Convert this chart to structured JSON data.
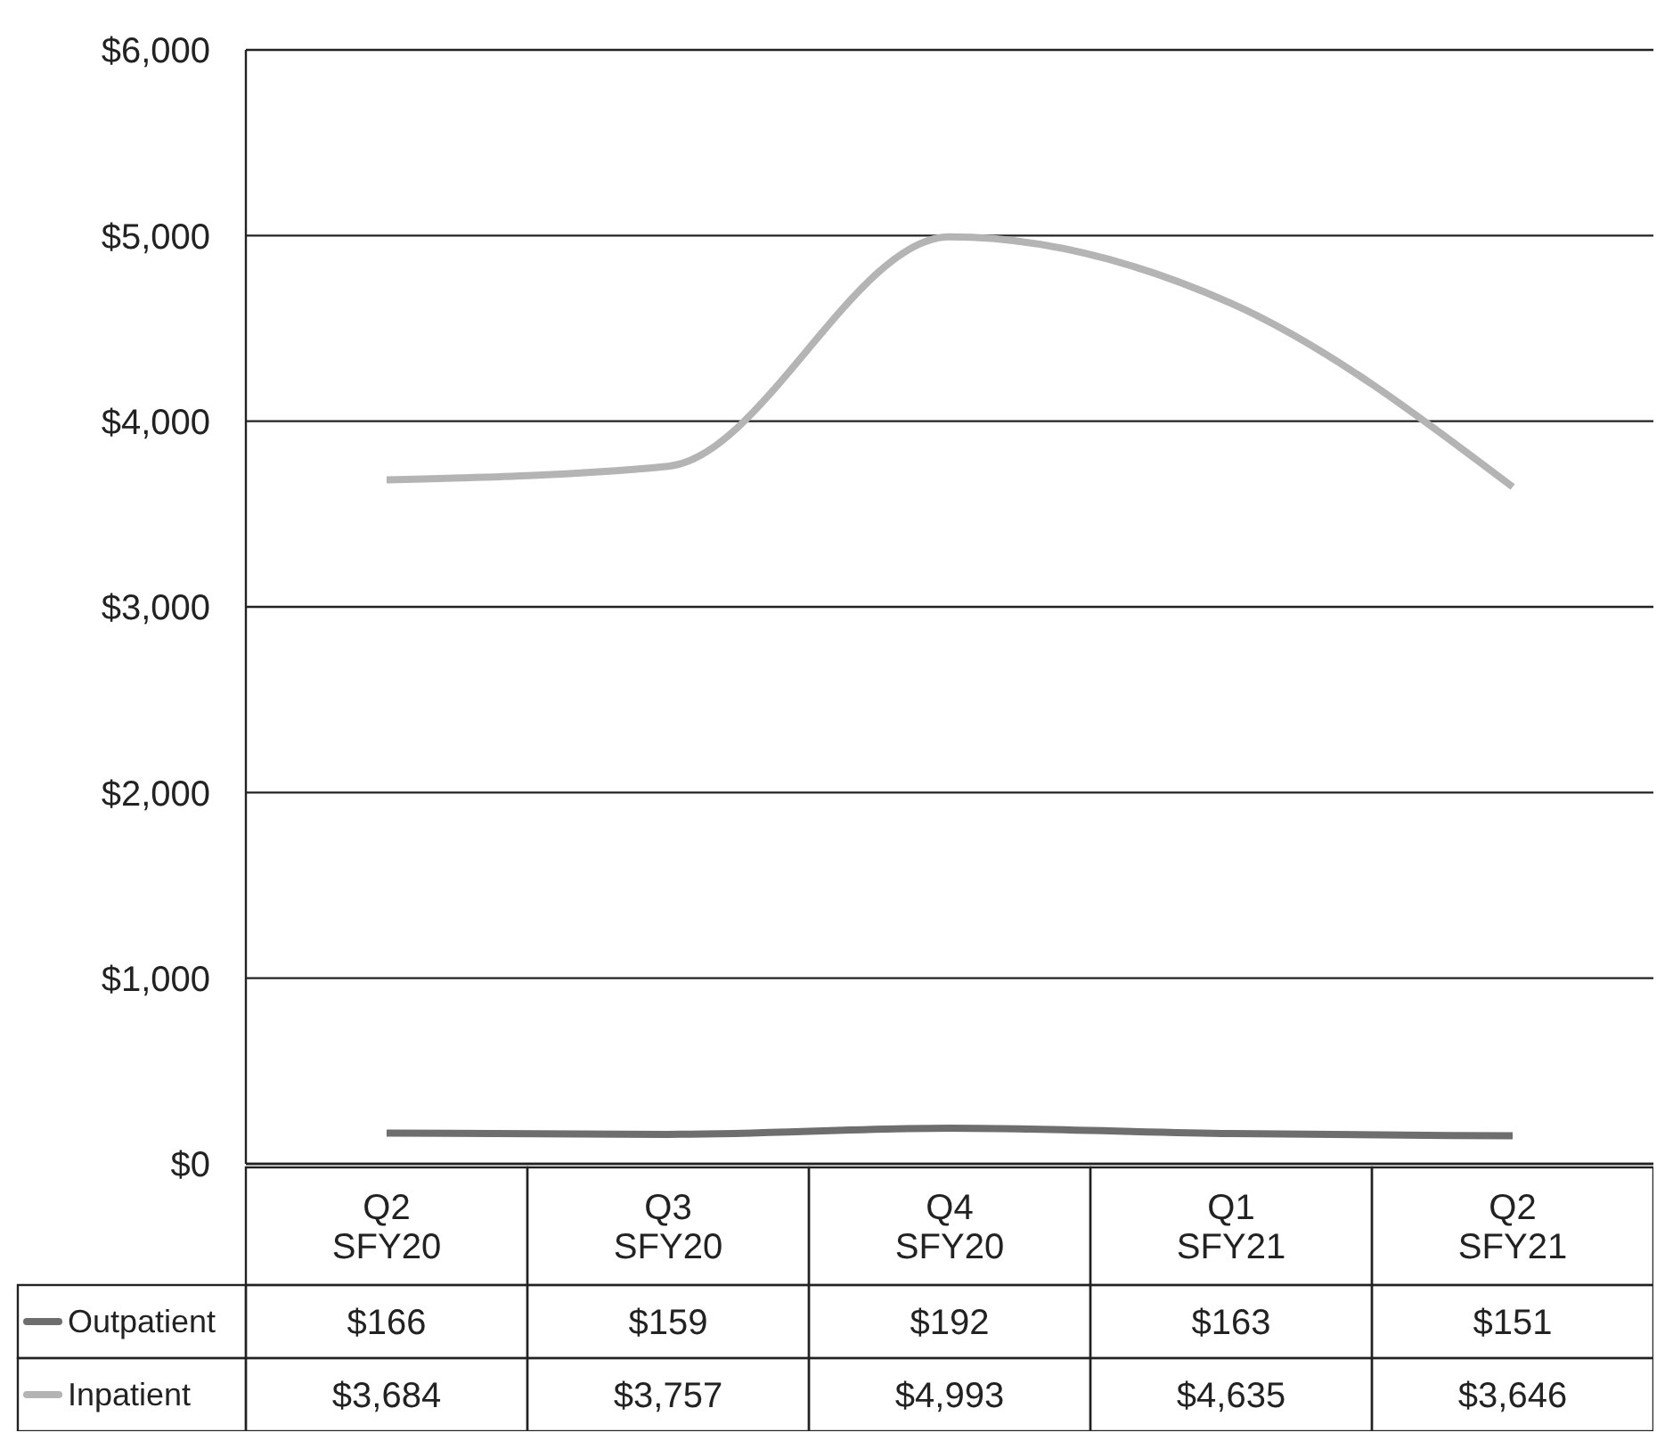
{
  "chart_data": {
    "type": "line",
    "categories": [
      "Q2 SFY20",
      "Q3 SFY20",
      "Q4 SFY20",
      "Q1 SFY21",
      "Q2 SFY21"
    ],
    "series": [
      {
        "name": "Outpatient",
        "color": "#6e6e6e",
        "values": [
          166,
          159,
          192,
          163,
          151
        ],
        "value_labels": [
          "$166",
          "$159",
          "$192",
          "$163",
          "$151"
        ]
      },
      {
        "name": "Inpatient",
        "color": "#b4b4b4",
        "values": [
          3684,
          3757,
          4993,
          4635,
          3646
        ],
        "value_labels": [
          "$3,684",
          "$3,757",
          "$4,993",
          "$4,635",
          "$3,646"
        ]
      }
    ],
    "ylim": [
      0,
      6000
    ],
    "yticks": [
      {
        "value": 0,
        "label": "$0"
      },
      {
        "value": 1000,
        "label": "$1,000"
      },
      {
        "value": 2000,
        "label": "$2,000"
      },
      {
        "value": 3000,
        "label": "$3,000"
      },
      {
        "value": 4000,
        "label": "$4,000"
      },
      {
        "value": 5000,
        "label": "$5,000"
      },
      {
        "value": 6000,
        "label": "$6,000"
      }
    ],
    "grid": "y",
    "legend": "bottom left"
  }
}
